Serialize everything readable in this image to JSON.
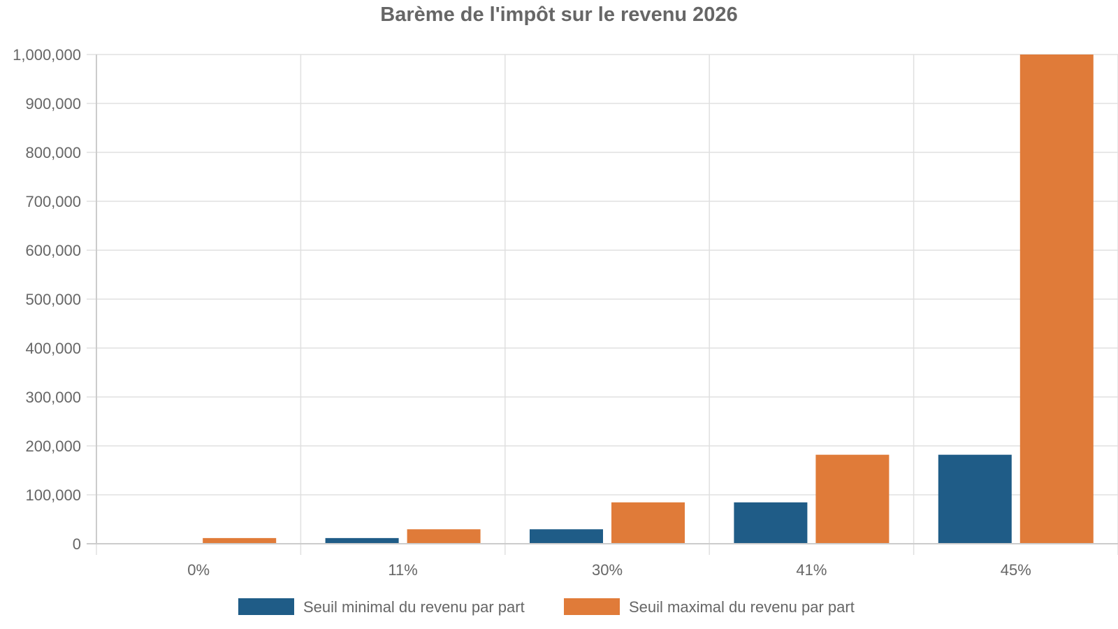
{
  "chart_data": {
    "type": "bar",
    "title": "Barème de l'impôt sur le revenu 2026",
    "xlabel": "",
    "ylabel": "",
    "categories": [
      "0%",
      "11%",
      "30%",
      "41%",
      "45%"
    ],
    "series": [
      {
        "name": "Seuil minimal du revenu par part",
        "color": "#1f5c87",
        "values": [
          0,
          11600,
          29579,
          84577,
          181917
        ]
      },
      {
        "name": "Seuil maximal du revenu par part",
        "color": "#e07b39",
        "values": [
          11600,
          29579,
          84577,
          181917,
          1000000
        ]
      }
    ],
    "ylim": [
      0,
      1000000
    ],
    "yticks": [
      "0",
      "100,000",
      "200,000",
      "300,000",
      "400,000",
      "500,000",
      "600,000",
      "700,000",
      "800,000",
      "900,000",
      "1,000,000"
    ],
    "grid": true,
    "legend": "bottom"
  }
}
